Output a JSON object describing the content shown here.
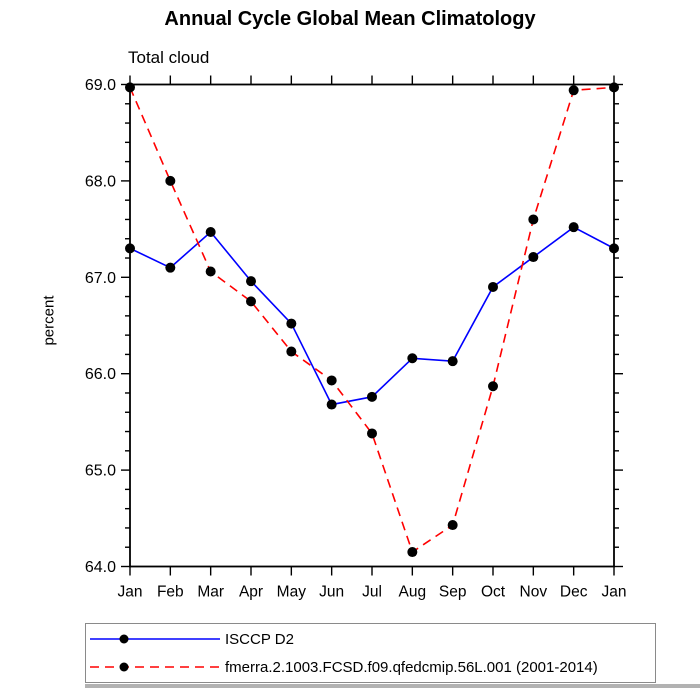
{
  "window": {
    "background": "#ffffff"
  },
  "chart_data": {
    "type": "line",
    "title": "Annual Cycle Global Mean Climatology",
    "subtitle": "Total cloud",
    "ylabel": "percent",
    "categories": [
      "Jan",
      "Feb",
      "Mar",
      "Apr",
      "May",
      "Jun",
      "Jul",
      "Aug",
      "Sep",
      "Oct",
      "Nov",
      "Dec",
      "Jan"
    ],
    "ylim": [
      64.0,
      69.0
    ],
    "ytick_major": [
      64.0,
      65.0,
      66.0,
      67.0,
      68.0,
      69.0
    ],
    "ytick_minor_step": 0.2,
    "grid": false,
    "legend_position": "bottom-left",
    "axis_color": "#000000",
    "series": [
      {
        "name": "ISCCP D2",
        "color": "#0000ff",
        "line_style": "solid",
        "marker": "filled-circle",
        "marker_color": "#000000",
        "values": [
          67.3,
          67.1,
          67.47,
          66.96,
          66.52,
          65.68,
          65.76,
          66.16,
          66.13,
          66.9,
          67.21,
          67.52,
          67.3
        ]
      },
      {
        "name": "fmerra.2.1003.FCSD.f09.qfedcmip.56L.001 (2001-2014)",
        "color": "#ff0000",
        "line_style": "dashed",
        "marker": "filled-circle",
        "marker_color": "#000000",
        "values": [
          68.97,
          68.0,
          67.06,
          66.75,
          66.23,
          65.93,
          65.38,
          64.15,
          64.43,
          65.87,
          67.6,
          68.94,
          68.97
        ]
      }
    ]
  }
}
